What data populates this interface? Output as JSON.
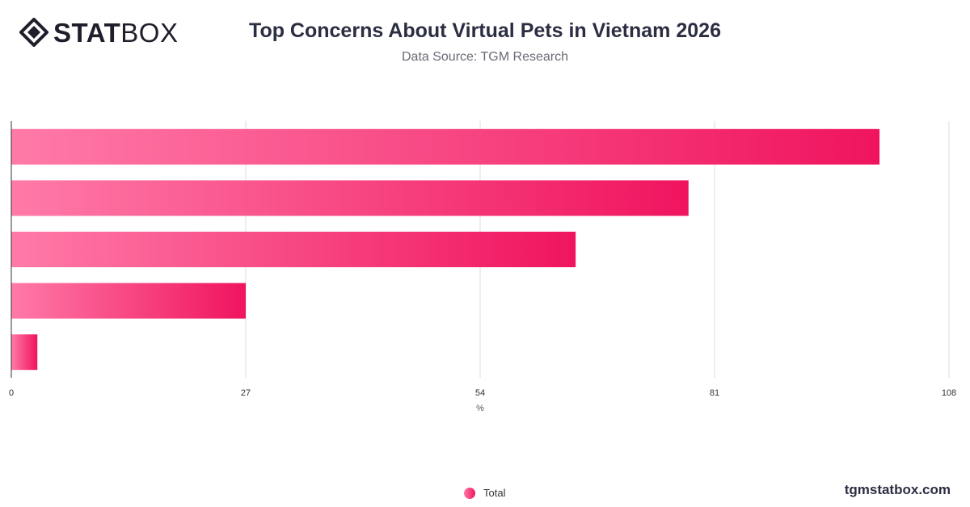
{
  "brand": {
    "bold": "STAT",
    "light": "BOX",
    "site": "tgmstatbox.com"
  },
  "header": {
    "title": "Top Concerns About Virtual Pets in Vietnam 2026",
    "subtitle": "Data Source: TGM Research"
  },
  "colors": {
    "bar_start": "#ff7aa8",
    "bar_end": "#f0145f",
    "grid": "#dddddd",
    "axis": "#333333"
  },
  "chart_data": {
    "type": "bar",
    "orientation": "horizontal",
    "title": "Top Concerns About Virtual Pets in Vietnam 2026",
    "subtitle": "Data Source: TGM Research",
    "xlabel": "%",
    "ylabel": "",
    "xlim": [
      0,
      108
    ],
    "xticks": [
      0,
      27,
      54,
      81,
      108
    ],
    "grid": true,
    "legend_position": "bottom",
    "categories": [
      "",
      "",
      "",
      "",
      ""
    ],
    "series": [
      {
        "name": "Total",
        "values": [
          100,
          78,
          65,
          27,
          3
        ]
      }
    ]
  }
}
